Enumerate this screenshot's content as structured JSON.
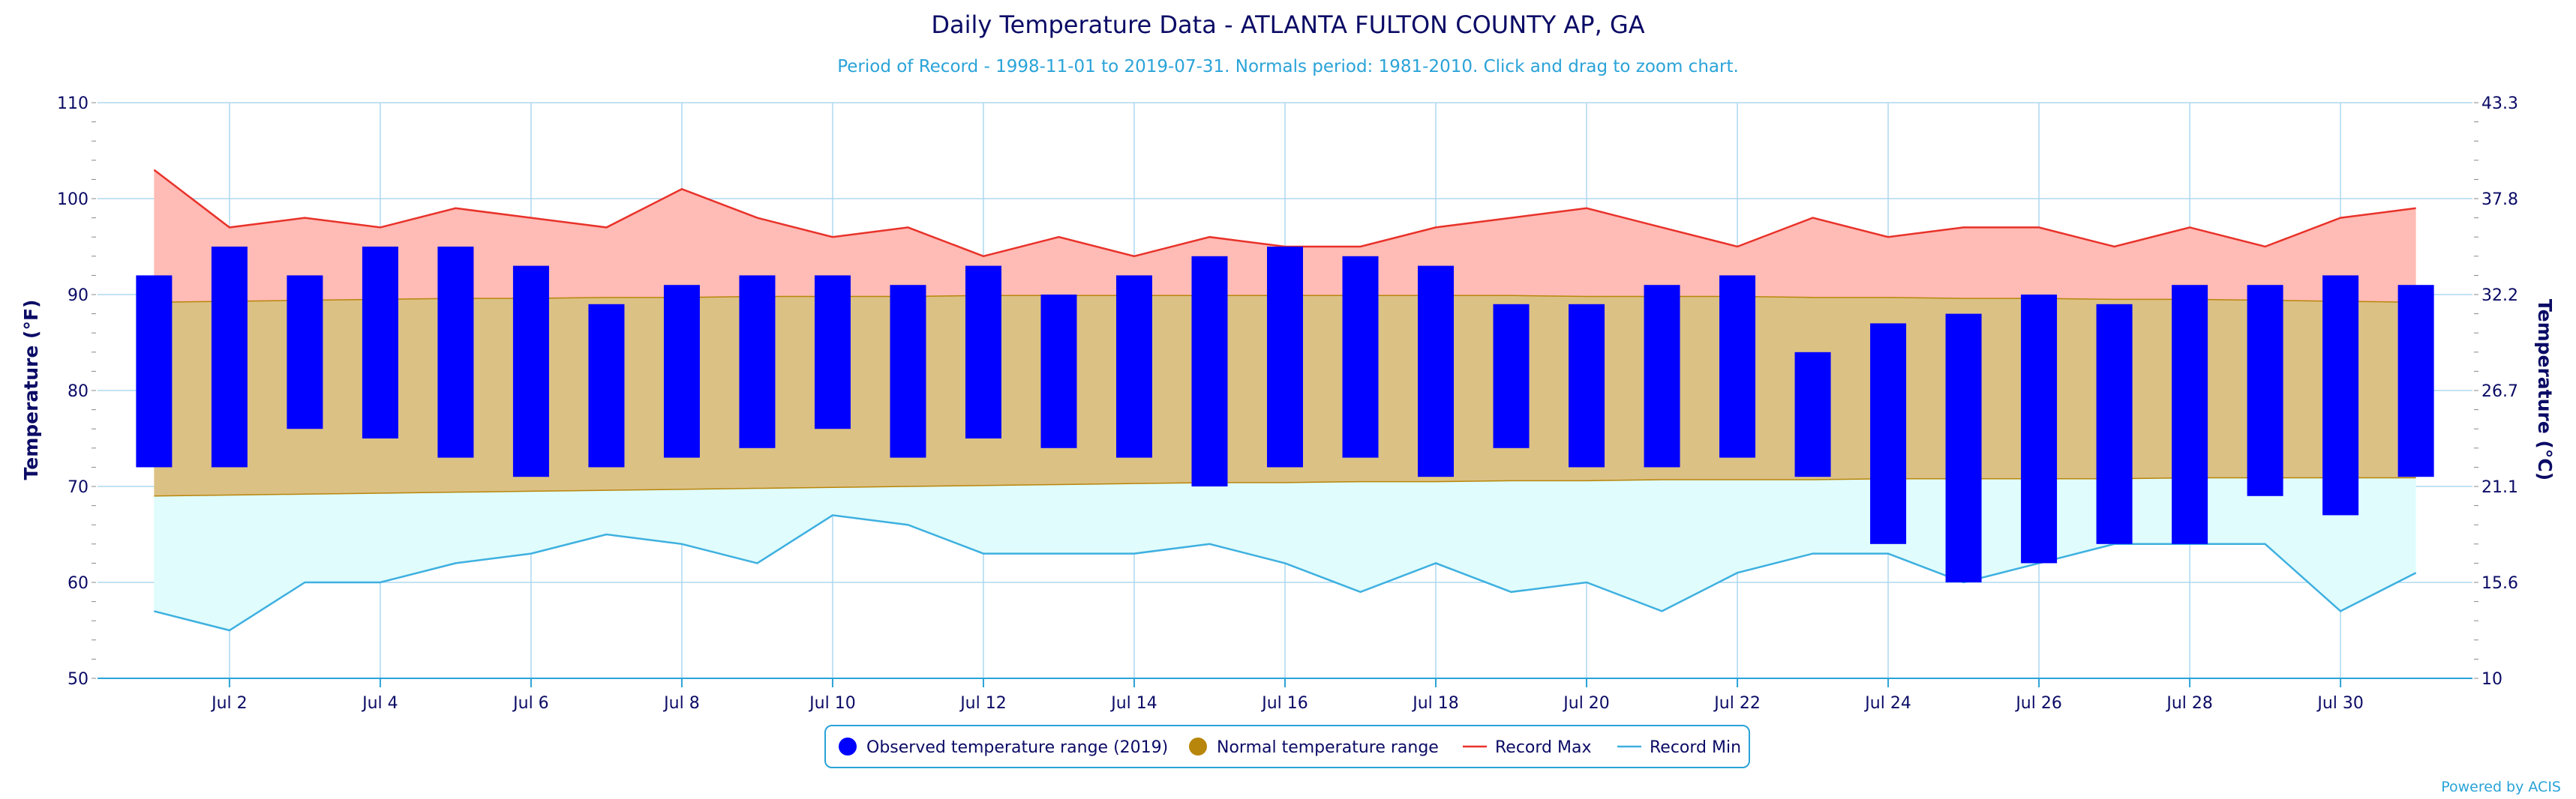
{
  "chart_data": {
    "type": "bar",
    "title": "Daily Temperature Data - ATLANTA FULTON COUNTY AP, GA",
    "subtitle": "Period of Record - 1998-11-01 to 2019-07-31. Normals period: 1981-2010. Click and drag to zoom chart.",
    "ylabel": "Temperature (°F)",
    "ylabel_right": "Temperature (°C)",
    "ylim": [
      50,
      110
    ],
    "yticks": [
      50,
      60,
      70,
      80,
      90,
      100,
      110
    ],
    "yticks_right": [
      "10",
      "15.6",
      "21.1",
      "26.7",
      "32.2",
      "37.8",
      "43.3"
    ],
    "x_tick_labels": [
      "Jul 2",
      "Jul 4",
      "Jul 6",
      "Jul 8",
      "Jul 10",
      "Jul 12",
      "Jul 14",
      "Jul 16",
      "Jul 18",
      "Jul 20",
      "Jul 22",
      "Jul 24",
      "Jul 26",
      "Jul 28",
      "Jul 30"
    ],
    "days": [
      1,
      2,
      3,
      4,
      5,
      6,
      7,
      8,
      9,
      10,
      11,
      12,
      13,
      14,
      15,
      16,
      17,
      18,
      19,
      20,
      21,
      22,
      23,
      24,
      25,
      26,
      27,
      28,
      29,
      30,
      31
    ],
    "grid": true,
    "legend_position": "bottom-center",
    "colors": {
      "observed": "#0000ff",
      "normal_fill": "#dcc185",
      "normal_line": "#b8860b",
      "record_max_line": "#e8322a",
      "record_max_fill": "#ffbbb5",
      "record_min_line": "#3eb0e0",
      "record_min_fill": "#e0fcfc",
      "grid": "#add8f0",
      "axis": "#2aa3d8"
    },
    "series": [
      {
        "name": "Observed temperature range (2019)",
        "low": [
          72,
          72,
          76,
          75,
          73,
          71,
          72,
          73,
          74,
          76,
          73,
          75,
          74,
          73,
          70,
          72,
          73,
          71,
          74,
          72,
          72,
          73,
          71,
          64,
          60,
          62,
          64,
          64,
          69,
          67,
          71
        ],
        "high": [
          92,
          95,
          92,
          95,
          95,
          93,
          89,
          91,
          92,
          92,
          91,
          93,
          90,
          92,
          94,
          95,
          94,
          93,
          89,
          89,
          91,
          92,
          84,
          87,
          88,
          90,
          89,
          91,
          91,
          92,
          91
        ]
      },
      {
        "name": "Normal temperature range",
        "low": [
          69.0,
          69.1,
          69.2,
          69.3,
          69.4,
          69.5,
          69.6,
          69.7,
          69.8,
          69.9,
          70.0,
          70.1,
          70.2,
          70.3,
          70.4,
          70.4,
          70.5,
          70.5,
          70.6,
          70.6,
          70.7,
          70.7,
          70.7,
          70.8,
          70.8,
          70.8,
          70.8,
          70.9,
          70.9,
          70.9,
          70.9
        ],
        "high": [
          89.2,
          89.3,
          89.4,
          89.5,
          89.6,
          89.6,
          89.7,
          89.7,
          89.8,
          89.8,
          89.8,
          89.9,
          89.9,
          89.9,
          89.9,
          89.9,
          89.9,
          89.9,
          89.9,
          89.8,
          89.8,
          89.8,
          89.7,
          89.7,
          89.6,
          89.6,
          89.5,
          89.5,
          89.4,
          89.3,
          89.2
        ]
      },
      {
        "name": "Record Max",
        "values": [
          103,
          97,
          98,
          97,
          99,
          98,
          97,
          101,
          98,
          96,
          97,
          94,
          96,
          94,
          96,
          95,
          95,
          97,
          98,
          99,
          97,
          95,
          98,
          96,
          97,
          97,
          95,
          97,
          95,
          98,
          99
        ]
      },
      {
        "name": "Record Min",
        "values": [
          57,
          55,
          60,
          60,
          62,
          63,
          65,
          64,
          62,
          67,
          66,
          63,
          63,
          63,
          64,
          62,
          59,
          62,
          59,
          60,
          57,
          61,
          63,
          63,
          60,
          62,
          64,
          64,
          64,
          57,
          61
        ]
      }
    ]
  },
  "legend": {
    "observed": "Observed temperature range (2019)",
    "normal": "Normal temperature range",
    "record_max": "Record Max",
    "record_min": "Record Min"
  },
  "credit": "Powered by ACIS"
}
